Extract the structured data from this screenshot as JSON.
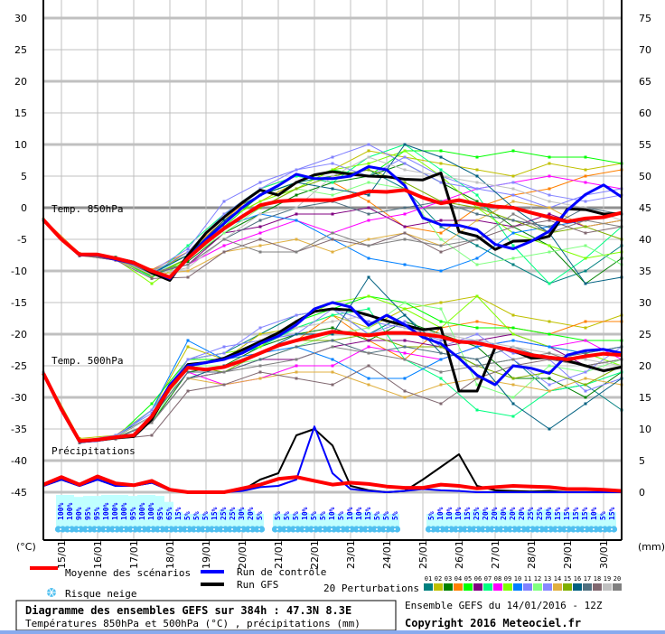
{
  "chart_data": {
    "type": "line",
    "title": "Diagramme des ensembles GEFS sur 384h : 47.3N 8.3E",
    "subtitle": "Températures 850hPa et 500hPa (°C) , précipitations (mm)",
    "run_info": "Ensemble GEFS du 14/01/2016 - 12Z",
    "copyright": "Copyright 2016 Meteociel.fr",
    "left_axis": {
      "unit_label": "(°C)",
      "range": [
        -45,
        30
      ],
      "ticks": [
        "30",
        "25",
        "20",
        "15",
        "10",
        "5",
        "0",
        "-5",
        "-10",
        "-15",
        "-20",
        "-25",
        "-30",
        "-35",
        "-40",
        "-45"
      ]
    },
    "right_axis": {
      "unit_label": "(mm)",
      "range": [
        0,
        75
      ],
      "ticks": [
        "75",
        "70",
        "65",
        "60",
        "55",
        "50",
        "45",
        "40",
        "35",
        "30",
        "25",
        "20",
        "15",
        "10",
        "5",
        "0"
      ]
    },
    "x_dates": [
      "15/01",
      "16/01",
      "17/01",
      "18/01",
      "19/01",
      "20/01",
      "21/01",
      "22/01",
      "23/01",
      "24/01",
      "25/01",
      "26/01",
      "27/01",
      "28/01",
      "29/01",
      "30/01"
    ],
    "x_start": "14/01 12Z",
    "x_step_hours_main": 12,
    "x_step_hours_members": 24,
    "panel_labels": {
      "t850": "Temp. 850hPa",
      "t500": "Temp. 500hPa",
      "precip": "Précipitations"
    },
    "legend": {
      "mean": "Moyenne des scénarios",
      "control": "Run de contrôle",
      "gfs": "Run GFS",
      "snow": "Risque neige",
      "perturbations": "20 Perturbations"
    },
    "colors": {
      "mean": "#ff0000",
      "control": "#0000ff",
      "gfs": "#000000",
      "snow_fill": "#c0ffff",
      "snow_bead": "#50c0f0"
    },
    "t850": {
      "mean": [
        -1.9,
        -5,
        -7.4,
        -7.4,
        -8,
        -8.7,
        -10,
        -11,
        -8,
        -5.5,
        -3.3,
        -1.4,
        0.4,
        1,
        1.2,
        1.2,
        1.2,
        1.8,
        2.6,
        2.5,
        2.8,
        1.6,
        0.7,
        1.2,
        0.6,
        0.2,
        0,
        -0.8,
        -1.5,
        -2.2,
        -1.7,
        -1.5,
        -0.8
      ],
      "control": [
        -1.9,
        -5,
        -7.5,
        -7.5,
        -8.2,
        -8.8,
        -10,
        -11.2,
        -8,
        -5,
        -2.5,
        0,
        2,
        3.5,
        5.3,
        4.6,
        4.6,
        5,
        6.5,
        6,
        3.5,
        -1.6,
        -2.7,
        -2.8,
        -3.5,
        -5.8,
        -6.5,
        -5.3,
        -3.7,
        -0.4,
        2.1,
        3.6,
        1.7
      ],
      "gfs": [
        -1.9,
        -5,
        -7.5,
        -7.5,
        -8,
        -8.6,
        -10.3,
        -11.5,
        -7.5,
        -4,
        -1.5,
        0.8,
        2.8,
        2,
        4,
        5.2,
        5.7,
        5.3,
        5,
        4.9,
        4.5,
        4.4,
        5.5,
        -3.8,
        -4.5,
        -6.6,
        -5.3,
        -5.2,
        -4.5,
        -0.2,
        -0.3,
        -1,
        -0.9
      ],
      "members": [
        [
          -2,
          -7.5,
          -8,
          -10.5,
          -7,
          -1,
          2,
          4,
          5,
          6,
          3,
          -3,
          -6,
          -9,
          -12,
          -10,
          -6
        ],
        [
          -2,
          -7.3,
          -8.2,
          -10,
          -7.5,
          -2,
          1,
          4,
          6,
          9,
          8,
          7,
          6,
          5,
          7,
          6,
          7
        ],
        [
          -2,
          -7.6,
          -7.8,
          -10.8,
          -8.5,
          -4,
          -1,
          2,
          4,
          5,
          7,
          4,
          1,
          -3,
          -6,
          -12,
          -8
        ],
        [
          -1.8,
          -7.2,
          -8.1,
          -9.8,
          -7,
          -2,
          3,
          5,
          4,
          1,
          -3,
          -4,
          0,
          2,
          3,
          5,
          6
        ],
        [
          -2,
          -7.4,
          -8,
          -11,
          -8,
          -3,
          2,
          4,
          6,
          5,
          9,
          9,
          8,
          9,
          8,
          8,
          7
        ],
        [
          -2,
          -7.5,
          -8.3,
          -10.2,
          -9,
          -4,
          -3,
          -1,
          -1,
          0,
          -3,
          -2,
          -2,
          -3,
          -1,
          -3,
          -2
        ],
        [
          -1.9,
          -7.5,
          -7.9,
          -11,
          -6,
          -1,
          3,
          5,
          4,
          8,
          10,
          6,
          2,
          -6,
          -12,
          -8,
          -3
        ],
        [
          -2,
          -7.6,
          -8,
          -10.4,
          -9,
          -6,
          -4,
          -2,
          -4,
          -2,
          -1,
          1,
          3,
          4,
          5,
          4,
          3
        ],
        [
          -1.9,
          -7.4,
          -8.1,
          -12,
          -8,
          -2,
          1,
          3,
          6,
          7,
          9,
          5,
          0,
          -4,
          -6,
          -8,
          -7
        ],
        [
          -2,
          -7.5,
          -8,
          -10.5,
          -7.5,
          -3,
          -1,
          -2,
          -5,
          -8,
          -9,
          -10,
          -8,
          -4,
          -3,
          -2,
          -1
        ],
        [
          -2,
          -7.3,
          -8.2,
          -10,
          -6.5,
          1,
          4,
          6,
          8,
          10,
          7,
          4,
          3,
          2,
          0,
          2,
          3
        ],
        [
          -2,
          -7.5,
          -8,
          -10.6,
          -8,
          -4,
          0,
          3,
          2,
          4,
          3,
          -5,
          -9,
          -8,
          -7,
          -6,
          -9
        ],
        [
          -2,
          -7.4,
          -7.9,
          -10.3,
          -7,
          -1,
          3,
          6,
          7,
          5,
          8,
          5,
          3,
          4,
          2,
          1,
          2
        ],
        [
          -1.9,
          -7.6,
          -8.2,
          -10.6,
          -10,
          -7,
          -6,
          -5,
          -7,
          -5,
          -4,
          -6,
          -2,
          1,
          0,
          -3,
          -2
        ],
        [
          -2,
          -7.5,
          -8,
          -10.8,
          -8,
          -3,
          0,
          3,
          5,
          6,
          4,
          1,
          0,
          -2,
          -4,
          -3,
          -5
        ],
        [
          -2,
          -7.4,
          -8.1,
          -10.4,
          -7.5,
          -2,
          2,
          4,
          3,
          2,
          10,
          8,
          5,
          0,
          -4,
          -12,
          -11
        ],
        [
          -1.9,
          -7.6,
          -8,
          -10.5,
          -9,
          -5,
          -2,
          0,
          1,
          -1,
          0,
          1,
          -1,
          -2,
          -3,
          0,
          -1
        ],
        [
          -2,
          -7.5,
          -8.3,
          -11.2,
          -11,
          -7,
          -5,
          -7,
          -5,
          -6,
          -4,
          -7,
          -5,
          -3,
          -2,
          -4,
          -3
        ],
        [
          -2,
          -7.4,
          -8,
          -10.6,
          -9.5,
          -5,
          -1,
          0,
          5,
          8,
          6,
          5,
          4,
          3,
          1,
          0,
          -2
        ],
        [
          -2,
          -7.5,
          -8.1,
          -10.2,
          -9,
          -5,
          -7,
          -7,
          -4,
          -6,
          -5,
          -6,
          -5,
          -1,
          -4,
          -2,
          -3
        ]
      ]
    },
    "t500": {
      "mean": [
        -26.2,
        -31.9,
        -36.9,
        -36.7,
        -36.3,
        -36,
        -33,
        -28.5,
        -25.3,
        -25.6,
        -25.2,
        -24.2,
        -23,
        -21.8,
        -21,
        -20.3,
        -19.6,
        -19.9,
        -20.2,
        -19.8,
        -19.8,
        -20,
        -20.4,
        -21.2,
        -21.4,
        -22,
        -22.6,
        -23.3,
        -23.7,
        -24,
        -23.5,
        -23.1,
        -23.3
      ],
      "control": [
        -26.2,
        -32,
        -37,
        -36.8,
        -36.3,
        -36,
        -33,
        -28,
        -25,
        -24.5,
        -24,
        -23,
        -21.5,
        -20.3,
        -18.5,
        -16,
        -15,
        -15.7,
        -18.6,
        -17,
        -18.5,
        -20.5,
        -21.5,
        -23.8,
        -26.5,
        -28,
        -25,
        -25.4,
        -26.2,
        -23.3,
        -22.6,
        -22.4,
        -23
      ],
      "gfs": [
        -26.2,
        -32,
        -37,
        -36.8,
        -36.4,
        -36.2,
        -33.5,
        -28.5,
        -24.8,
        -24.5,
        -23.8,
        -22.5,
        -21.2,
        -19.8,
        -18,
        -16.4,
        -16,
        -16.2,
        -17,
        -17.9,
        -18.6,
        -19.3,
        -19,
        -29,
        -29,
        -22.1,
        -22.6,
        -23.8,
        -23.7,
        -24.2,
        -25,
        -25.8,
        -25.2
      ],
      "members": [
        [
          -26,
          -37,
          -36,
          -33,
          -24,
          -23,
          -20,
          -17,
          -16,
          -20,
          -17,
          -22,
          -25,
          -24,
          -29,
          -28,
          -32
        ],
        [
          -26,
          -36.5,
          -36,
          -32,
          -22,
          -24,
          -20,
          -19,
          -17,
          -19,
          -16,
          -15,
          -14,
          -17,
          -18,
          -19,
          -17
        ],
        [
          -26,
          -37.2,
          -36.5,
          -34,
          -26,
          -25,
          -22,
          -20,
          -19,
          -21,
          -18,
          -20,
          -22,
          -27,
          -27,
          -30,
          -26
        ],
        [
          -26,
          -36.8,
          -36.2,
          -33,
          -25,
          -24,
          -23,
          -21,
          -17,
          -21,
          -24,
          -19,
          -18,
          -19,
          -20,
          -18,
          -18
        ],
        [
          -26.3,
          -37,
          -36.4,
          -31,
          -24,
          -24,
          -22,
          -18,
          -16,
          -14,
          -15,
          -18,
          -19,
          -19,
          -20,
          -21,
          -21
        ],
        [
          -26.2,
          -37.1,
          -36.5,
          -34,
          -27,
          -26,
          -24,
          -24,
          -22,
          -21,
          -21,
          -22,
          -21,
          -20,
          -22,
          -25,
          -24
        ],
        [
          -26,
          -36.9,
          -36.3,
          -32,
          -25,
          -24,
          -22,
          -19,
          -17,
          -16,
          -24,
          -27,
          -32,
          -33,
          -29,
          -28,
          -26
        ],
        [
          -26.1,
          -37,
          -36.2,
          -33,
          -26,
          -28,
          -27,
          -25,
          -25,
          -22,
          -23,
          -24,
          -22,
          -21,
          -22,
          -21,
          -24
        ],
        [
          -26,
          -36.8,
          -36.1,
          -32,
          -24,
          -23,
          -22,
          -18,
          -15,
          -14,
          -16,
          -19,
          -14,
          -20,
          -22,
          -23,
          -25
        ],
        [
          -26.2,
          -37,
          -36.4,
          -32,
          -21,
          -24,
          -23,
          -22,
          -24,
          -27,
          -27,
          -24,
          -22,
          -21,
          -22,
          -23,
          -22
        ],
        [
          -26.1,
          -36.9,
          -36,
          -32.5,
          -24,
          -22,
          -21,
          -20,
          -16,
          -18,
          -19,
          -21,
          -21,
          -23,
          -24,
          -29,
          -27
        ],
        [
          -26,
          -37,
          -36.3,
          -34,
          -25,
          -25,
          -24,
          -22,
          -20,
          -19,
          -15,
          -16,
          -28,
          -30,
          -25,
          -26,
          -24
        ],
        [
          -26,
          -36.8,
          -36.2,
          -32,
          -24,
          -23,
          -19,
          -17,
          -16,
          -20,
          -18,
          -22,
          -20,
          -24,
          -28,
          -26,
          -22
        ],
        [
          -26.2,
          -37.1,
          -36.4,
          -34,
          -27,
          -28,
          -27,
          -26,
          -26,
          -28,
          -30,
          -28,
          -27,
          -28,
          -29,
          -27,
          -28
        ],
        [
          -26,
          -36.9,
          -36.2,
          -33,
          -25,
          -26,
          -23,
          -21,
          -21,
          -20,
          -22,
          -22,
          -25,
          -27,
          -26,
          -28,
          -25
        ],
        [
          -26.1,
          -37,
          -36.5,
          -34,
          -27,
          -25,
          -23,
          -20,
          -20,
          -11,
          -17,
          -23,
          -24,
          -31,
          -35,
          -31,
          -27
        ],
        [
          -26,
          -36.8,
          -36.3,
          -33,
          -26,
          -26,
          -24,
          -22,
          -21,
          -23,
          -22,
          -23,
          -24,
          -22,
          -24,
          -23,
          -22
        ],
        [
          -26.2,
          -37.2,
          -36.6,
          -36,
          -29,
          -28,
          -26,
          -27,
          -28,
          -25,
          -29,
          -31,
          -27,
          -25,
          -24,
          -25,
          -24
        ],
        [
          -26,
          -36.9,
          -36.2,
          -33,
          -25,
          -24,
          -21,
          -19,
          -18,
          -17,
          -19,
          -20,
          -21,
          -22,
          -23,
          -24,
          -25
        ],
        [
          -26.1,
          -37,
          -36.4,
          -34,
          -27,
          -26,
          -25,
          -24,
          -22,
          -23,
          -24,
          -26,
          -25,
          -24,
          -23,
          -25,
          -24
        ]
      ]
    },
    "precip": {
      "mean": [
        1.2,
        2.4,
        1.2,
        2.5,
        1.4,
        1.1,
        1.8,
        0.4,
        0,
        0,
        0,
        0.6,
        1.2,
        2.1,
        2.4,
        1.8,
        1.2,
        1.5,
        1.3,
        0.9,
        0.7,
        0.7,
        1.2,
        1,
        0.6,
        0.8,
        1,
        0.9,
        0.8,
        0.5,
        0.5,
        0.4,
        0.2
      ],
      "control": [
        1,
        2,
        1,
        2,
        1,
        1,
        1.5,
        0.3,
        0,
        0,
        0,
        0.2,
        0.8,
        1,
        2,
        10.4,
        3,
        0.5,
        0.2,
        0,
        0.2,
        0.5,
        0.3,
        0.2,
        0,
        0,
        0,
        0,
        0,
        0,
        0,
        0,
        0
      ],
      "gfs": [
        1,
        2,
        1,
        2,
        1,
        1,
        1.5,
        0.3,
        0,
        0,
        0,
        0.3,
        2,
        3,
        9,
        10,
        7.4,
        1,
        0.3,
        0,
        0.2,
        2,
        4,
        6,
        1,
        0.3,
        0.2,
        0.1,
        0.2,
        0,
        0,
        0,
        0
      ]
    },
    "snow_risk_pct": [
      "100%",
      "100%",
      "90%",
      "95%",
      "95%",
      "100%",
      "100%",
      "100%",
      "95%",
      "100%",
      "100%",
      "95%",
      "65%",
      "15%",
      "5%",
      "5%",
      "5%",
      "15%",
      "25%",
      "25%",
      "30%",
      "20%",
      "5%",
      null,
      "5%",
      "5%",
      "5%",
      "10%",
      "5%",
      "5%",
      "10%",
      "5%",
      "10%",
      "10%",
      "15%",
      "5%",
      "5%",
      "5%",
      null,
      null,
      null,
      "5%",
      "10%",
      "10%",
      "10%",
      "15%",
      "25%",
      "20%",
      "20%",
      "20%",
      "20%",
      "20%",
      "25%",
      "25%",
      "30%",
      "15%",
      "15%",
      "15%",
      "15%",
      "10%",
      "5%",
      "15%"
    ],
    "perturbations": [
      {
        "id": "01",
        "color": "#008080"
      },
      {
        "id": "02",
        "color": "#c0c000"
      },
      {
        "id": "03",
        "color": "#008000"
      },
      {
        "id": "04",
        "color": "#ff8000"
      },
      {
        "id": "05",
        "color": "#00ff00"
      },
      {
        "id": "06",
        "color": "#800080"
      },
      {
        "id": "07",
        "color": "#00ff80"
      },
      {
        "id": "08",
        "color": "#ff00ff"
      },
      {
        "id": "09",
        "color": "#80ff00"
      },
      {
        "id": "10",
        "color": "#0080ff"
      },
      {
        "id": "11",
        "color": "#8080ff"
      },
      {
        "id": "12",
        "color": "#80ff80"
      },
      {
        "id": "13",
        "color": "#8888ff"
      },
      {
        "id": "14",
        "color": "#e0b040"
      },
      {
        "id": "15",
        "color": "#80b000"
      },
      {
        "id": "16",
        "color": "#006080"
      },
      {
        "id": "17",
        "color": "#507080"
      },
      {
        "id": "18",
        "color": "#806870"
      },
      {
        "id": "19",
        "color": "#c0c0c0"
      },
      {
        "id": "20",
        "color": "#808080"
      }
    ]
  }
}
